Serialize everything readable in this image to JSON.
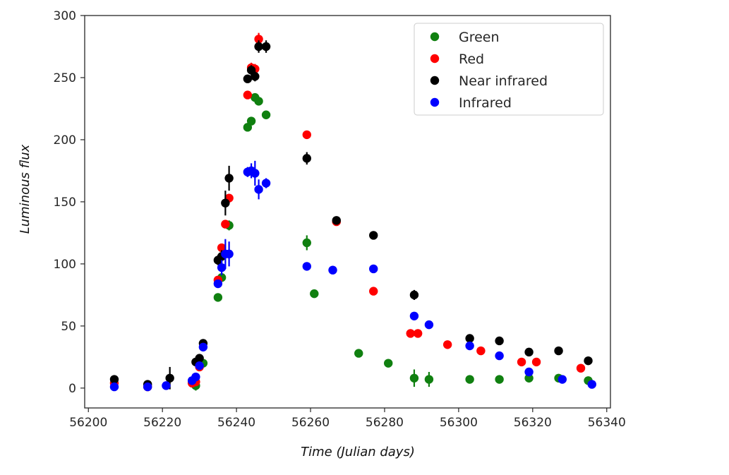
{
  "chart_data": {
    "type": "scatter",
    "xlabel": "Time (Julian days)",
    "ylabel": "Luminous flux",
    "xlim": [
      56199,
      56341
    ],
    "ylim": [
      -16,
      300
    ],
    "xticks": [
      56200,
      56220,
      56240,
      56260,
      56280,
      56300,
      56320,
      56340
    ],
    "yticks": [
      0,
      50,
      100,
      150,
      200,
      250,
      300
    ],
    "legend_position": "top-right",
    "grid": false,
    "series": [
      {
        "name": "Green",
        "color": "#108010",
        "points": [
          [
            56229,
            2,
            4
          ],
          [
            56231,
            20,
            3
          ],
          [
            56235,
            73,
            3
          ],
          [
            56236,
            89,
            3
          ],
          [
            56238,
            131,
            4
          ],
          [
            56243,
            210,
            3
          ],
          [
            56244,
            215,
            3
          ],
          [
            56245,
            234,
            3
          ],
          [
            56246,
            231,
            3
          ],
          [
            56248,
            220,
            3
          ],
          [
            56259,
            117,
            6
          ],
          [
            56261,
            76,
            3
          ],
          [
            56273,
            28,
            3
          ],
          [
            56281,
            20,
            3
          ],
          [
            56288,
            8,
            7
          ],
          [
            56292,
            7,
            6
          ],
          [
            56303,
            7,
            3
          ],
          [
            56311,
            7,
            3
          ],
          [
            56319,
            8,
            3
          ],
          [
            56327,
            8,
            3
          ],
          [
            56335,
            6,
            3
          ]
        ]
      },
      {
        "name": "Red",
        "color": "#ff0000",
        "points": [
          [
            56207,
            4,
            3
          ],
          [
            56216,
            1,
            3
          ],
          [
            56228,
            4,
            3
          ],
          [
            56229,
            5,
            3
          ],
          [
            56230,
            17,
            3
          ],
          [
            56235,
            87,
            3
          ],
          [
            56236,
            113,
            3
          ],
          [
            56237,
            132,
            3
          ],
          [
            56238,
            153,
            3
          ],
          [
            56243,
            236,
            3
          ],
          [
            56244,
            258,
            4
          ],
          [
            56245,
            257,
            4
          ],
          [
            56246,
            281,
            5
          ],
          [
            56259,
            204,
            3
          ],
          [
            56267,
            134,
            3
          ],
          [
            56277,
            78,
            3
          ],
          [
            56287,
            44,
            3
          ],
          [
            56289,
            44,
            3
          ],
          [
            56297,
            35,
            3
          ],
          [
            56306,
            30,
            3
          ],
          [
            56317,
            21,
            3
          ],
          [
            56321,
            21,
            3
          ],
          [
            56333,
            16,
            3
          ]
        ]
      },
      {
        "name": "Near infrared",
        "color": "#000000",
        "points": [
          [
            56207,
            7,
            3
          ],
          [
            56216,
            3,
            3
          ],
          [
            56222,
            8,
            9
          ],
          [
            56229,
            21,
            3
          ],
          [
            56230,
            24,
            3
          ],
          [
            56231,
            36,
            3
          ],
          [
            56235,
            103,
            4
          ],
          [
            56236,
            106,
            5
          ],
          [
            56237,
            149,
            10
          ],
          [
            56238,
            169,
            10
          ],
          [
            56243,
            249,
            3
          ],
          [
            56244,
            256,
            4
          ],
          [
            56245,
            251,
            4
          ],
          [
            56246,
            275,
            5
          ],
          [
            56248,
            275,
            5
          ],
          [
            56259,
            185,
            5
          ],
          [
            56267,
            135,
            3
          ],
          [
            56277,
            123,
            3
          ],
          [
            56288,
            75,
            4
          ],
          [
            56303,
            40,
            3
          ],
          [
            56311,
            38,
            3
          ],
          [
            56319,
            29,
            3
          ],
          [
            56327,
            30,
            3
          ],
          [
            56335,
            22,
            3
          ]
        ]
      },
      {
        "name": "Infrared",
        "color": "#0000ff",
        "points": [
          [
            56207,
            1,
            3
          ],
          [
            56216,
            1,
            3
          ],
          [
            56221,
            2,
            3
          ],
          [
            56228,
            6,
            3
          ],
          [
            56229,
            9,
            3
          ],
          [
            56230,
            18,
            3
          ],
          [
            56231,
            33,
            3
          ],
          [
            56235,
            84,
            3
          ],
          [
            56236,
            97,
            6
          ],
          [
            56237,
            108,
            12
          ],
          [
            56238,
            108,
            10
          ],
          [
            56243,
            174,
            4
          ],
          [
            56244,
            175,
            6
          ],
          [
            56245,
            173,
            10
          ],
          [
            56246,
            160,
            8
          ],
          [
            56248,
            165,
            4
          ],
          [
            56259,
            98,
            3
          ],
          [
            56266,
            95,
            3
          ],
          [
            56277,
            96,
            3
          ],
          [
            56288,
            58,
            3
          ],
          [
            56292,
            51,
            3
          ],
          [
            56303,
            34,
            3
          ],
          [
            56311,
            26,
            3
          ],
          [
            56319,
            13,
            3
          ],
          [
            56328,
            7,
            3
          ],
          [
            56336,
            3,
            3
          ]
        ]
      }
    ]
  }
}
